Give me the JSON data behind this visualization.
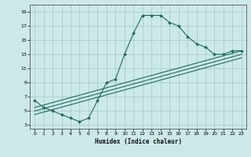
{
  "title": "",
  "xlabel": "Humidex (Indice chaleur)",
  "bg_color": "#cce8e8",
  "line_color": "#1e6b60",
  "grid_color": "#a8cccc",
  "xlim": [
    -0.5,
    23.5
  ],
  "ylim": [
    2.5,
    20.0
  ],
  "xticks": [
    0,
    1,
    2,
    3,
    4,
    5,
    6,
    7,
    8,
    9,
    10,
    11,
    12,
    13,
    14,
    15,
    16,
    17,
    18,
    19,
    20,
    21,
    22,
    23
  ],
  "yticks": [
    3,
    5,
    7,
    9,
    11,
    13,
    15,
    17,
    19
  ],
  "main_line_x": [
    0,
    1,
    2,
    3,
    4,
    5,
    6,
    7,
    8,
    9,
    10,
    11,
    12,
    13,
    14,
    15,
    16,
    17,
    18,
    19,
    20,
    21,
    22,
    23
  ],
  "main_line_y": [
    6.5,
    5.5,
    5.0,
    4.5,
    4.0,
    3.5,
    4.0,
    6.5,
    9.0,
    9.5,
    13.0,
    16.0,
    18.5,
    18.5,
    18.5,
    17.5,
    17.0,
    15.5,
    14.5,
    14.0,
    13.0,
    13.0,
    13.5,
    13.5
  ],
  "line2_x": [
    0,
    23
  ],
  "line2_y": [
    5.5,
    13.5
  ],
  "line3_x": [
    0,
    23
  ],
  "line3_y": [
    5.0,
    13.0
  ],
  "line4_x": [
    0,
    23
  ],
  "line4_y": [
    4.5,
    12.5
  ],
  "marker_x": [
    0,
    1,
    2,
    3,
    4,
    5,
    6,
    7,
    8,
    9,
    10,
    11,
    12,
    13,
    14,
    15,
    16,
    17,
    18,
    19,
    20,
    21,
    22,
    23
  ],
  "marker_y": [
    6.5,
    5.5,
    5.0,
    4.5,
    4.0,
    3.5,
    4.0,
    6.5,
    9.0,
    9.5,
    13.0,
    16.0,
    18.5,
    18.5,
    18.5,
    17.5,
    17.0,
    15.5,
    14.5,
    14.0,
    13.0,
    13.0,
    13.5,
    13.5
  ]
}
